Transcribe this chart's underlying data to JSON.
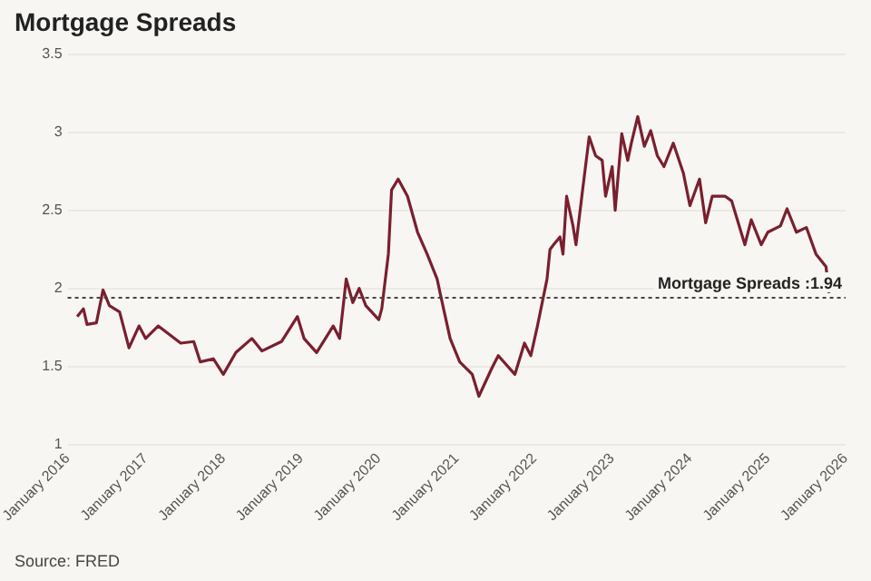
{
  "chart_data": {
    "type": "line",
    "title": "Mortgage Spreads",
    "x": [
      "2016-02-15",
      "2016-03-15",
      "2016-04-01",
      "2016-05-15",
      "2016-06-15",
      "2016-07-15",
      "2016-09-01",
      "2016-10-15",
      "2016-12-01",
      "2017-01-01",
      "2017-03-01",
      "2017-06-15",
      "2017-08-15",
      "2017-09-15",
      "2017-11-15",
      "2018-01-01",
      "2018-03-01",
      "2018-05-15",
      "2018-07-01",
      "2018-10-01",
      "2018-12-15",
      "2019-01-15",
      "2019-03-15",
      "2019-06-01",
      "2019-07-01",
      "2019-08-01",
      "2019-09-01",
      "2019-10-01",
      "2019-11-01",
      "2020-01-01",
      "2020-01-15",
      "2020-02-15",
      "2020-03-01",
      "2020-04-01",
      "2020-05-15",
      "2020-07-01",
      "2020-08-15",
      "2020-10-01",
      "2020-10-15",
      "2020-12-01",
      "2021-01-15",
      "2021-03-15",
      "2021-04-15",
      "2021-06-15",
      "2021-07-15",
      "2021-10-01",
      "2021-11-15",
      "2021-12-15",
      "2022-01-15",
      "2022-03-01",
      "2022-03-15",
      "2022-04-01",
      "2022-05-01",
      "2022-05-15",
      "2022-06-01",
      "2022-07-01",
      "2022-07-15",
      "2022-08-15",
      "2022-09-15",
      "2022-10-15",
      "2022-11-15",
      "2022-12-01",
      "2023-01-01",
      "2023-01-15",
      "2023-02-15",
      "2023-03-15",
      "2023-04-01",
      "2023-05-01",
      "2023-06-01",
      "2023-07-01",
      "2023-08-01",
      "2023-09-01",
      "2023-10-15",
      "2023-12-01",
      "2024-01-01",
      "2024-02-15",
      "2024-03-15",
      "2024-04-15",
      "2024-06-15",
      "2024-07-15",
      "2024-09-15",
      "2024-10-15",
      "2024-12-01",
      "2025-01-01",
      "2025-03-01",
      "2025-04-01",
      "2025-05-15",
      "2025-07-01",
      "2025-08-15",
      "2025-10-01",
      "2025-10-15"
    ],
    "series": [
      {
        "color": "#7a1f2e",
        "values": [
          1.82,
          1.87,
          1.77,
          1.78,
          1.99,
          1.89,
          1.85,
          1.62,
          1.76,
          1.68,
          1.76,
          1.65,
          1.66,
          1.53,
          1.55,
          1.45,
          1.59,
          1.68,
          1.6,
          1.66,
          1.82,
          1.68,
          1.59,
          1.76,
          1.68,
          2.06,
          1.91,
          2.0,
          1.89,
          1.8,
          1.87,
          2.22,
          2.63,
          2.7,
          2.59,
          2.36,
          2.22,
          2.06,
          1.97,
          1.68,
          1.53,
          1.45,
          1.31,
          1.49,
          1.57,
          1.45,
          1.65,
          1.57,
          1.76,
          2.06,
          2.25,
          2.28,
          2.33,
          2.22,
          2.59,
          2.4,
          2.28,
          2.63,
          2.97,
          2.85,
          2.82,
          2.59,
          2.78,
          2.5,
          2.99,
          2.82,
          2.93,
          3.1,
          2.91,
          3.01,
          2.85,
          2.78,
          2.93,
          2.74,
          2.53,
          2.7,
          2.42,
          2.59,
          2.59,
          2.56,
          2.28,
          2.44,
          2.28,
          2.36,
          2.4,
          2.51,
          2.36,
          2.39,
          2.22,
          2.14,
          1.97
        ]
      }
    ],
    "xlim": [
      "2016-01-01",
      "2026-01-01"
    ],
    "xticks": [
      {
        "value": "2016-01-01",
        "label": "January 2016"
      },
      {
        "value": "2017-01-01",
        "label": "January 2017"
      },
      {
        "value": "2018-01-01",
        "label": "January 2018"
      },
      {
        "value": "2019-01-01",
        "label": "January 2019"
      },
      {
        "value": "2020-01-01",
        "label": "January 2020"
      },
      {
        "value": "2021-01-01",
        "label": "January 2021"
      },
      {
        "value": "2022-01-01",
        "label": "January 2022"
      },
      {
        "value": "2023-01-01",
        "label": "January 2023"
      },
      {
        "value": "2024-01-01",
        "label": "January 2024"
      },
      {
        "value": "2025-01-01",
        "label": "January 2025"
      },
      {
        "value": "2026-01-01",
        "label": "January 2026"
      }
    ],
    "ylim": [
      1,
      3.5
    ],
    "yticks": [
      1,
      1.5,
      2,
      2.5,
      3,
      3.5
    ],
    "ref_lines": [
      {
        "axis": "y",
        "value": 1.94,
        "label": "Mortgage Spreads :1.94",
        "color": "#444444",
        "line_style": "dotted"
      }
    ],
    "annotations": [
      "Source: FRED"
    ],
    "grid": "y",
    "legend": false,
    "marker": "none",
    "line_style": "solid"
  }
}
